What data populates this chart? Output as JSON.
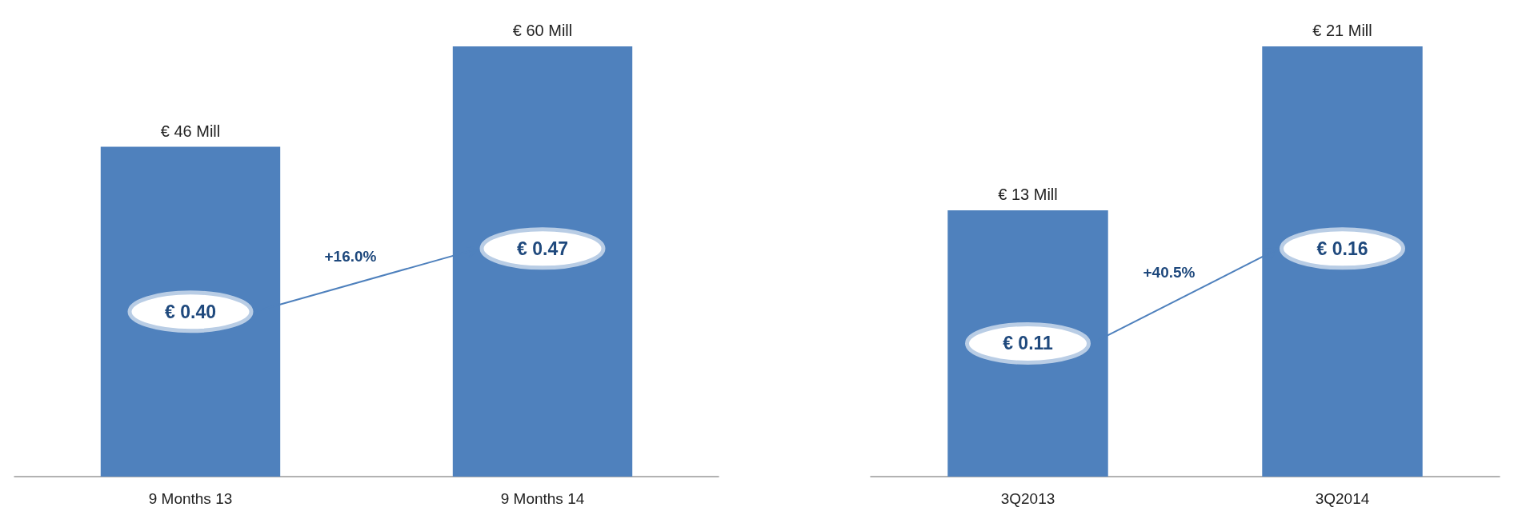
{
  "chart_data": [
    {
      "type": "bar",
      "categories": [
        "9 Months 13",
        "9 Months 14"
      ],
      "values": [
        46,
        60
      ],
      "color": "#4f81bd",
      "value_labels": [
        "€ 46 Mill",
        "€ 60 Mill"
      ],
      "annotations": [
        "€ 0.40",
        "€ 0.47",
        "+16.0%"
      ]
    },
    {
      "type": "bar",
      "categories": [
        "3Q2013",
        "3Q2014"
      ],
      "values": [
        13,
        21
      ],
      "color": "#4f81bd",
      "value_labels": [
        "€ 13 Mill",
        "€ 21 Mill"
      ],
      "annotations": [
        "€ 0.11",
        "€ 0.16",
        "+40.5%"
      ]
    }
  ]
}
